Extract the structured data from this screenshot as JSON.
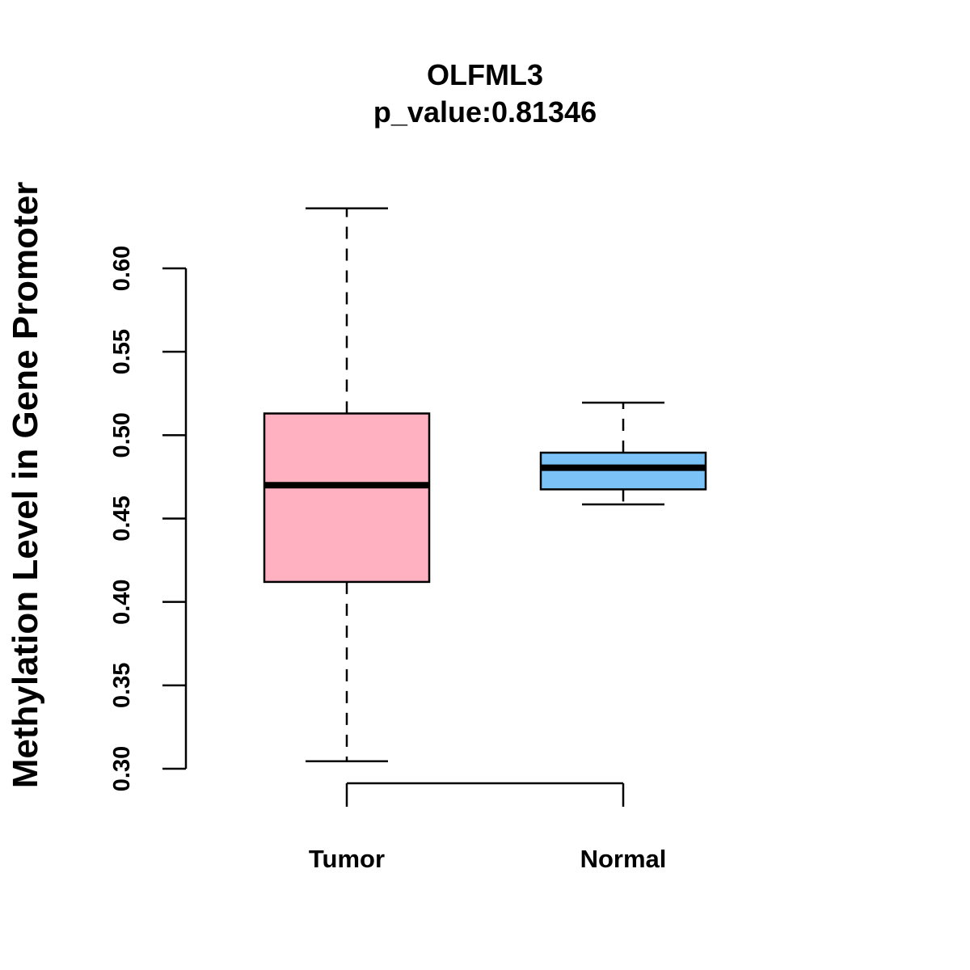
{
  "chart_data": {
    "type": "boxplot",
    "title": "OLFML3",
    "subtitle": "p_value:0.81346",
    "ylabel": "Methylation Level in Gene Promoter",
    "xlabel": "",
    "ylim": [
      0.3,
      0.6
    ],
    "yticks": [
      0.3,
      0.35,
      0.4,
      0.45,
      0.5,
      0.55,
      0.6
    ],
    "ytick_labels": [
      "0.30",
      "0.35",
      "0.40",
      "0.45",
      "0.50",
      "0.55",
      "0.60"
    ],
    "categories": [
      "Tumor",
      "Normal"
    ],
    "series": [
      {
        "name": "Tumor",
        "min": 0.3045,
        "q1": 0.412,
        "median": 0.47,
        "q3": 0.513,
        "max": 0.636,
        "color": "#FFB0C1"
      },
      {
        "name": "Normal",
        "min": 0.4585,
        "q1": 0.4675,
        "median": 0.4805,
        "q3": 0.4895,
        "max": 0.5195,
        "color": "#7BC3F6"
      }
    ]
  }
}
